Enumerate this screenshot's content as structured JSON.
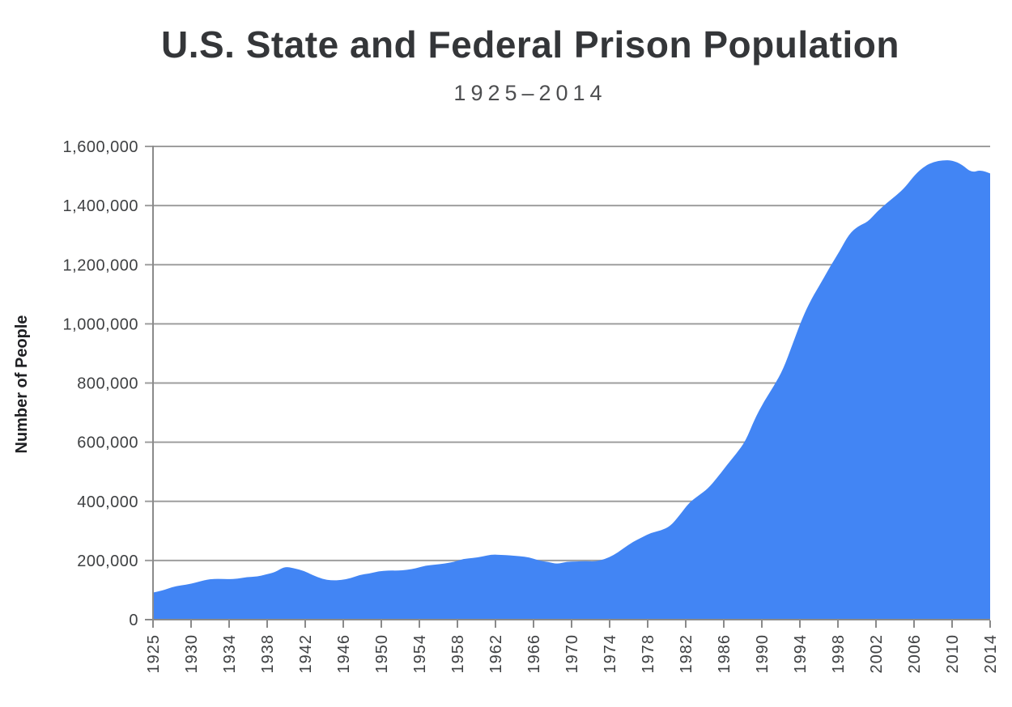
{
  "header": {
    "title": "U.S. State and Federal Prison Population",
    "subtitle": "1925–2014"
  },
  "chart_data": {
    "type": "area",
    "title": "U.S. State and Federal Prison Population",
    "subtitle": "1925–2014",
    "xlabel": "",
    "ylabel": "Number of People",
    "series_name": "Prison population",
    "ylim": [
      0,
      1600000
    ],
    "grid": "horizontal",
    "legend": "none",
    "area_color": "#4285F4",
    "gridline_color": "#9e9e9e",
    "axis_color": "#8a8a8a",
    "label_color": "#3f4143",
    "y_tick_labels": [
      "0",
      "200,000",
      "400,000",
      "600,000",
      "800,000",
      "1,000,000",
      "1,200,000",
      "1,400,000",
      "1,600,000"
    ],
    "x_tick_labels": [
      "1925",
      "1930",
      "1934",
      "1938",
      "1942",
      "1946",
      "1950",
      "1954",
      "1958",
      "1962",
      "1966",
      "1970",
      "1974",
      "1978",
      "1982",
      "1986",
      "1990",
      "1994",
      "1998",
      "2002",
      "2006",
      "2010",
      "2014"
    ],
    "x": [
      1925,
      1926,
      1927,
      1928,
      1929,
      1930,
      1931,
      1932,
      1933,
      1934,
      1935,
      1936,
      1937,
      1938,
      1939,
      1940,
      1941,
      1942,
      1943,
      1944,
      1945,
      1946,
      1947,
      1948,
      1949,
      1950,
      1951,
      1952,
      1953,
      1954,
      1955,
      1956,
      1957,
      1958,
      1959,
      1960,
      1961,
      1962,
      1963,
      1964,
      1965,
      1966,
      1967,
      1968,
      1969,
      1970,
      1971,
      1972,
      1973,
      1974,
      1975,
      1976,
      1977,
      1978,
      1979,
      1980,
      1981,
      1982,
      1983,
      1984,
      1985,
      1986,
      1987,
      1988,
      1989,
      1990,
      1991,
      1992,
      1993,
      1994,
      1995,
      1996,
      1997,
      1998,
      1999,
      2000,
      2001,
      2002,
      2003,
      2004,
      2005,
      2006,
      2007,
      2008,
      2009,
      2010,
      2011,
      2012,
      2013,
      2014
    ],
    "values": [
      91669,
      97991,
      109983,
      116390,
      120496,
      129453,
      137082,
      137997,
      136810,
      138316,
      144180,
      145038,
      152741,
      160285,
      179818,
      173706,
      165439,
      150384,
      137220,
      132456,
      133649,
      140079,
      151304,
      155977,
      163749,
      166123,
      165680,
      168233,
      173579,
      182901,
      185780,
      189565,
      195414,
      205643,
      208105,
      212953,
      220149,
      218830,
      217283,
      214336,
      210895,
      199654,
      194896,
      187914,
      196007,
      196429,
      198061,
      196092,
      204211,
      218466,
      240593,
      262833,
      278141,
      294396,
      301470,
      315974,
      353673,
      395516,
      419346,
      443398,
      480568,
      522084,
      560812,
      603732,
      680907,
      739980,
      789610,
      846277,
      932074,
      1016691,
      1085022,
      1137722,
      1194581,
      1245402,
      1304074,
      1331278,
      1345217,
      1380516,
      1408361,
      1433728,
      1462866,
      1504660,
      1532851,
      1547742,
      1553574,
      1552669,
      1538847,
      1511480,
      1520403,
      1508636
    ]
  }
}
